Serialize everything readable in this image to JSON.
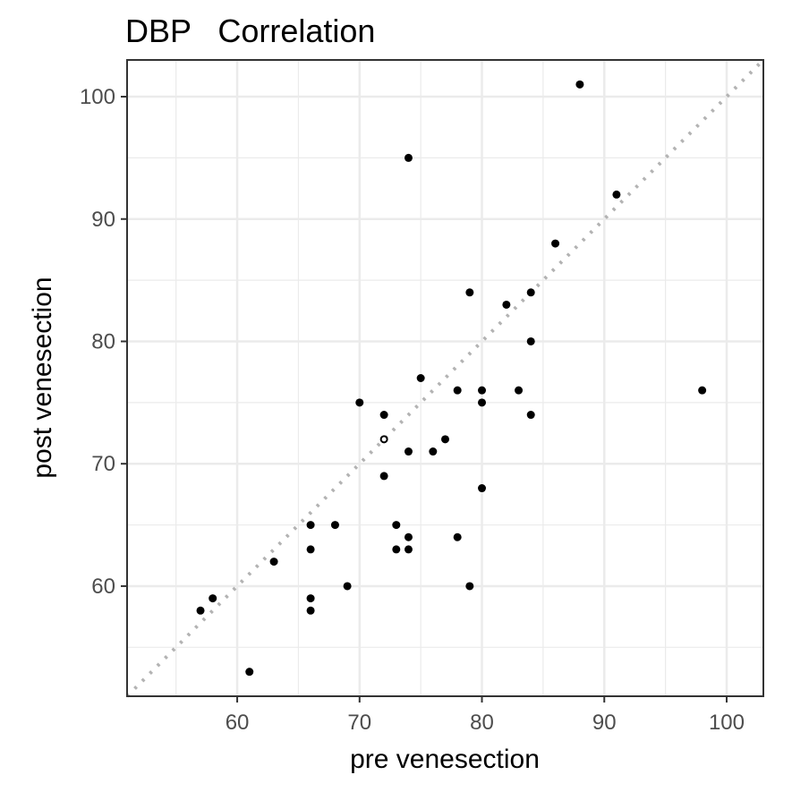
{
  "chart_data": {
    "type": "scatter",
    "title": "DBP   Correlation",
    "xlabel": "pre venesection",
    "ylabel": "post venesection",
    "xlim": [
      51,
      103
    ],
    "ylim": [
      51,
      103
    ],
    "xticks": [
      60,
      70,
      80,
      90,
      100
    ],
    "yticks": [
      60,
      70,
      80,
      90,
      100
    ],
    "grid": true,
    "reference_line": "y = x (dotted grey)",
    "points": [
      {
        "x": 88,
        "y": 101
      },
      {
        "x": 74,
        "y": 95
      },
      {
        "x": 91,
        "y": 92
      },
      {
        "x": 86,
        "y": 88
      },
      {
        "x": 79,
        "y": 84
      },
      {
        "x": 84,
        "y": 84
      },
      {
        "x": 82,
        "y": 83
      },
      {
        "x": 84,
        "y": 80
      },
      {
        "x": 75,
        "y": 77
      },
      {
        "x": 78,
        "y": 76
      },
      {
        "x": 80,
        "y": 76
      },
      {
        "x": 83,
        "y": 76
      },
      {
        "x": 98,
        "y": 76
      },
      {
        "x": 70,
        "y": 75
      },
      {
        "x": 80,
        "y": 75
      },
      {
        "x": 72,
        "y": 74
      },
      {
        "x": 84,
        "y": 74
      },
      {
        "x": 72,
        "y": 72,
        "hollow": true
      },
      {
        "x": 77,
        "y": 72
      },
      {
        "x": 74,
        "y": 71
      },
      {
        "x": 76,
        "y": 71
      },
      {
        "x": 72,
        "y": 69
      },
      {
        "x": 80,
        "y": 68
      },
      {
        "x": 66,
        "y": 65
      },
      {
        "x": 68,
        "y": 65
      },
      {
        "x": 73,
        "y": 65
      },
      {
        "x": 74,
        "y": 64
      },
      {
        "x": 78,
        "y": 64
      },
      {
        "x": 66,
        "y": 63
      },
      {
        "x": 73,
        "y": 63
      },
      {
        "x": 74,
        "y": 63
      },
      {
        "x": 63,
        "y": 62
      },
      {
        "x": 69,
        "y": 60
      },
      {
        "x": 79,
        "y": 60
      },
      {
        "x": 58,
        "y": 59
      },
      {
        "x": 66,
        "y": 59
      },
      {
        "x": 57,
        "y": 58
      },
      {
        "x": 66,
        "y": 58
      },
      {
        "x": 61,
        "y": 53
      }
    ]
  }
}
